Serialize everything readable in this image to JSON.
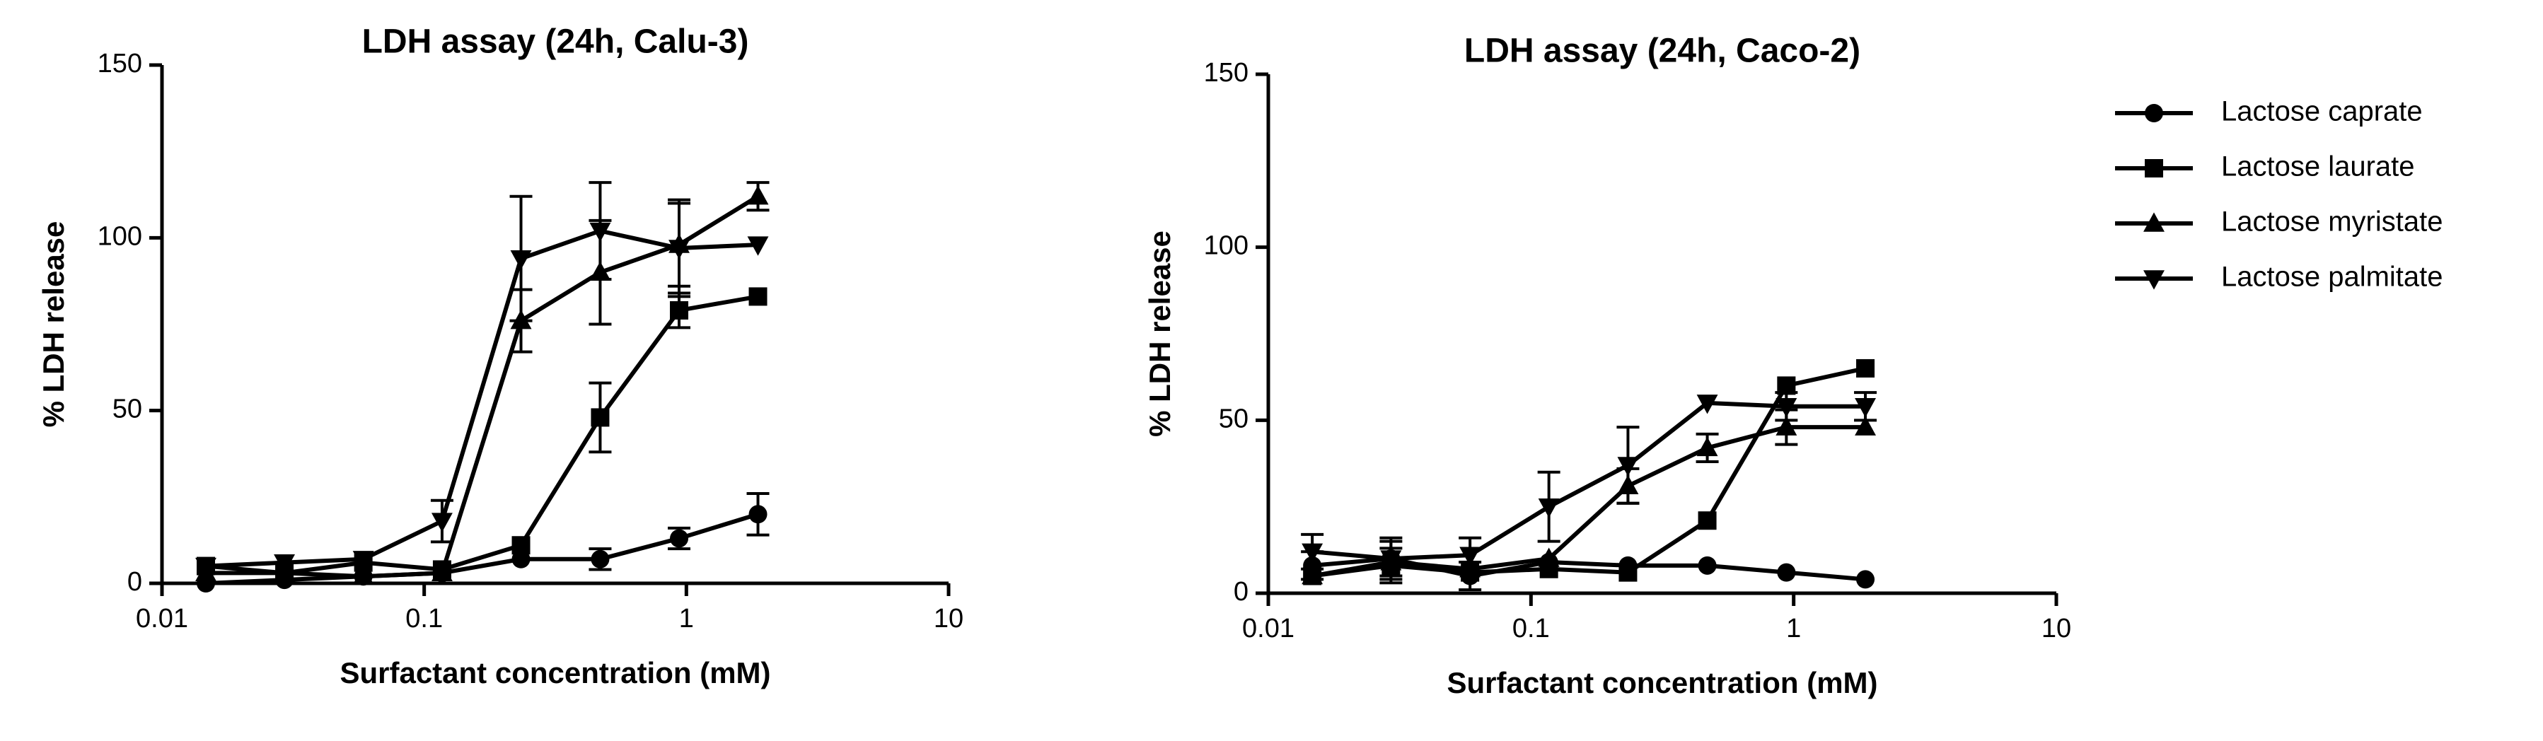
{
  "chart_data": [
    {
      "type": "line",
      "title": "LDH assay (24h, Calu-3)",
      "x_label": "Surfactant concentration (mM)",
      "y_label": "% LDH release",
      "xscale": "log",
      "xlim": [
        0.01,
        10
      ],
      "xticks": [
        0.01,
        0.1,
        1,
        10
      ],
      "ylim": [
        0,
        150
      ],
      "yticks": [
        0,
        50,
        100,
        150
      ],
      "x": [
        0.0147,
        0.0293,
        0.0586,
        0.117,
        0.234,
        0.469,
        0.938,
        1.875
      ],
      "series": [
        {
          "marker": "circle",
          "color": "#000000",
          "values": [
            0,
            1,
            2,
            3,
            7,
            7,
            13,
            20
          ],
          "errors": [
            null,
            null,
            null,
            null,
            null,
            3,
            3,
            6
          ]
        },
        {
          "marker": "square",
          "color": "#000000",
          "values": [
            5,
            3,
            6,
            4,
            11,
            48,
            79,
            83
          ],
          "errors": [
            null,
            null,
            null,
            null,
            null,
            10,
            5,
            null
          ]
        },
        {
          "marker": "triangle-up",
          "color": "#000000",
          "values": [
            3,
            3,
            2,
            3,
            76,
            90,
            98,
            112
          ],
          "errors": [
            null,
            null,
            null,
            null,
            9,
            15,
            12,
            4
          ]
        },
        {
          "marker": "triangle-down",
          "color": "#000000",
          "values": [
            5,
            6,
            7,
            18,
            94,
            102,
            97,
            98
          ],
          "errors": [
            null,
            null,
            null,
            6,
            18,
            14,
            14,
            null
          ]
        }
      ]
    },
    {
      "type": "line",
      "title": "LDH assay (24h, Caco-2)",
      "x_label": "Surfactant concentration (mM)",
      "y_label": "% LDH release",
      "xscale": "log",
      "xlim": [
        0.01,
        10
      ],
      "xticks": [
        0.01,
        0.1,
        1,
        10
      ],
      "ylim": [
        0,
        150
      ],
      "yticks": [
        0,
        50,
        100,
        150
      ],
      "x": [
        0.0147,
        0.0293,
        0.0586,
        0.117,
        0.234,
        0.469,
        0.938,
        1.875
      ],
      "series": [
        {
          "name": "Lactose caprate",
          "marker": "circle",
          "color": "#000000",
          "values": [
            8,
            10,
            5,
            9,
            8,
            8,
            6,
            4
          ],
          "errors": [
            4,
            5,
            4,
            null,
            null,
            null,
            null,
            null
          ]
        },
        {
          "name": "Lactose laurate",
          "marker": "square",
          "color": "#000000",
          "values": [
            5,
            8,
            6,
            7,
            6,
            21,
            60,
            65
          ],
          "errors": [
            null,
            5,
            null,
            null,
            null,
            null,
            null,
            null
          ]
        },
        {
          "name": "Lactose myristate",
          "marker": "triangle-up",
          "color": "#000000",
          "values": [
            5,
            9,
            7,
            10,
            31,
            42,
            48,
            48
          ],
          "errors": [
            null,
            null,
            null,
            null,
            5,
            4,
            5,
            null
          ]
        },
        {
          "name": "Lactose palmitate",
          "marker": "triangle-down",
          "color": "#000000",
          "values": [
            12,
            10,
            11,
            25,
            37,
            55,
            54,
            54
          ],
          "errors": [
            5,
            6,
            5,
            10,
            11,
            null,
            4,
            4
          ]
        }
      ]
    }
  ]
}
